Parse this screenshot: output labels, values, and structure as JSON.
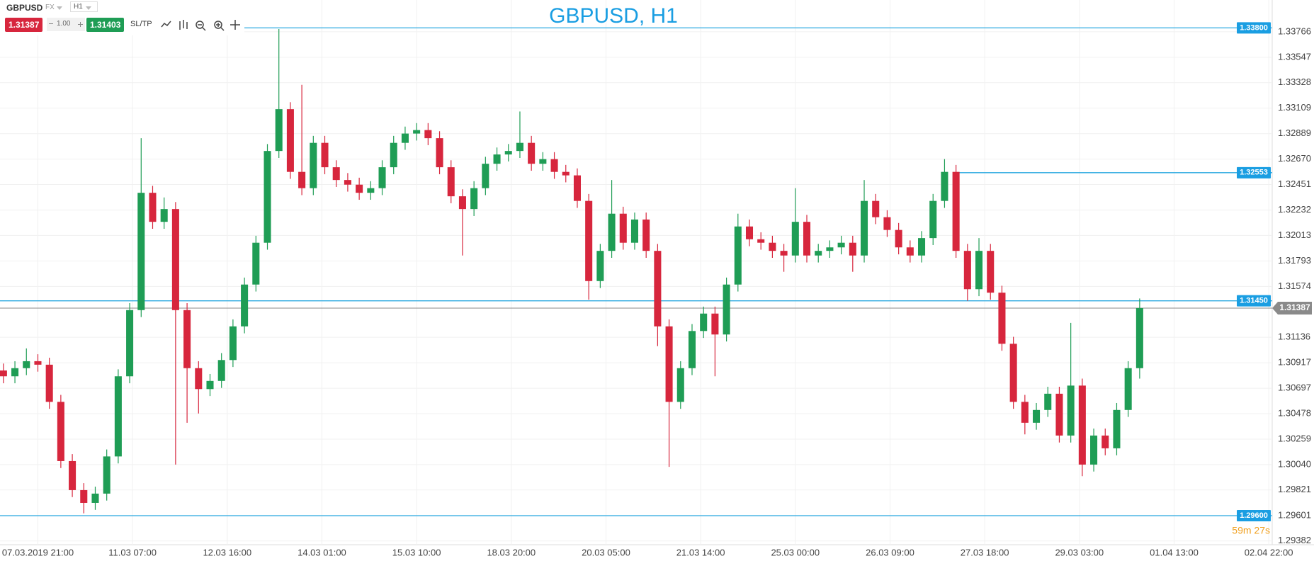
{
  "toolbar": {
    "symbol": "GBPUSD",
    "market": "FX",
    "timeframe": "H1",
    "sell": "1.31387",
    "lot": "1.00",
    "buy": "1.31403",
    "sltp": "SL/TP"
  },
  "chart_data": {
    "type": "candlestick",
    "title": "GBPUSD, H1",
    "up_color": "#1f9d55",
    "down_color": "#d7263d",
    "grid": true,
    "xlim": [
      -13.2,
      430.2
    ],
    "ylim": [
      1.2935,
      1.3404
    ],
    "xticks": [
      {
        "value": 0,
        "label": "07.03.2019 21:00"
      },
      {
        "value": 33,
        "label": "11.03 07:00"
      },
      {
        "value": 66,
        "label": "12.03 16:00"
      },
      {
        "value": 99,
        "label": "14.03 01:00"
      },
      {
        "value": 132,
        "label": "15.03 10:00"
      },
      {
        "value": 165,
        "label": "18.03 20:00"
      },
      {
        "value": 198,
        "label": "20.03 05:00"
      },
      {
        "value": 231,
        "label": "21.03 14:00"
      },
      {
        "value": 264,
        "label": "25.03 00:00"
      },
      {
        "value": 297,
        "label": "26.03 09:00"
      },
      {
        "value": 330,
        "label": "27.03 18:00"
      },
      {
        "value": 363,
        "label": "29.03 03:00"
      },
      {
        "value": 396,
        "label": "01.04 13:00"
      },
      {
        "value": 429,
        "label": "02.04 22:00"
      }
    ],
    "yticks": [
      1.33766,
      1.33547,
      1.33328,
      1.33109,
      1.32889,
      {
        "value": 1.3267,
        "label": "1.32670"
      },
      1.32451,
      1.32232,
      1.32013,
      1.31793,
      1.31574,
      1.31136,
      1.30917,
      1.30697,
      1.30478,
      1.30259,
      {
        "value": 1.3004,
        "label": "1.30040"
      },
      1.29821,
      1.29601,
      1.29382
    ],
    "levels": [
      {
        "value": 1.338,
        "label": "1.33800"
      },
      {
        "value": 1.32553,
        "label": "1.32553",
        "x_start": 320
      },
      {
        "value": 1.3145,
        "label": "1.31450"
      },
      {
        "value": 1.296,
        "label": "1.29600"
      }
    ],
    "current_price": {
      "value": 1.31387,
      "label": "1.31387"
    },
    "countdown": "59m 27s",
    "x": [
      -12,
      -8,
      -4,
      0,
      4,
      8,
      12,
      16,
      20,
      24,
      28,
      32,
      36,
      40,
      44,
      48,
      52,
      56,
      60,
      64,
      68,
      72,
      76,
      80,
      84,
      88,
      92,
      96,
      100,
      104,
      108,
      112,
      116,
      120,
      124,
      128,
      132,
      136,
      140,
      144,
      148,
      152,
      156,
      160,
      164,
      168,
      172,
      176,
      180,
      184,
      188,
      192,
      196,
      200,
      204,
      208,
      212,
      216,
      220,
      224,
      228,
      232,
      236,
      240,
      244,
      248,
      252,
      256,
      260,
      264,
      268,
      272,
      276,
      280,
      284,
      288,
      292,
      296,
      300,
      304,
      308,
      312,
      316,
      320,
      324,
      328,
      332,
      336,
      340,
      344,
      348,
      352,
      356,
      360,
      364,
      368,
      372,
      376,
      380,
      384
    ],
    "open": [
      1.3085,
      1.308,
      1.3087,
      1.3093,
      1.309,
      1.3058,
      1.3007,
      1.2982,
      1.2971,
      1.2979,
      1.3011,
      1.308,
      1.3137,
      1.3238,
      1.3213,
      1.3224,
      1.3137,
      1.3087,
      1.3069,
      1.3076,
      1.3094,
      1.3123,
      1.3159,
      1.3195,
      1.3274,
      1.331,
      1.3256,
      1.3242,
      1.3281,
      1.326,
      1.3249,
      1.3245,
      1.3238,
      1.3242,
      1.326,
      1.3281,
      1.3289,
      1.3292,
      1.3285,
      1.326,
      1.3235,
      1.3224,
      1.3242,
      1.3263,
      1.3271,
      1.3274,
      1.3281,
      1.3263,
      1.3267,
      1.3256,
      1.3253,
      1.3231,
      1.3162,
      1.3188,
      1.322,
      1.3195,
      1.3215,
      1.3188,
      1.3123,
      1.3058,
      1.3087,
      1.3119,
      1.3134,
      1.3116,
      1.3159,
      1.3209,
      1.3198,
      1.3195,
      1.3188,
      1.3184,
      1.3213,
      1.3184,
      1.3188,
      1.3191,
      1.3195,
      1.3184,
      1.3231,
      1.3217,
      1.3206,
      1.3191,
      1.3184,
      1.3199,
      1.3231,
      1.3256,
      1.3188,
      1.3155,
      1.3188,
      1.3152,
      1.3108,
      1.3058,
      1.304,
      1.3051,
      1.3065,
      1.3029,
      1.3072,
      1.3004,
      1.3029,
      1.3018,
      1.3051,
      1.3087
    ],
    "high": [
      1.3091,
      1.3093,
      1.3104,
      1.3099,
      1.3096,
      1.3064,
      1.3013,
      1.2988,
      1.2985,
      1.3017,
      1.3086,
      1.3143,
      1.3285,
      1.3244,
      1.3234,
      1.323,
      1.3143,
      1.3093,
      1.3082,
      1.31,
      1.3129,
      1.3165,
      1.3201,
      1.328,
      1.3379,
      1.3316,
      1.3331,
      1.3287,
      1.3287,
      1.3266,
      1.3255,
      1.3251,
      1.3248,
      1.3266,
      1.3287,
      1.3295,
      1.3298,
      1.3298,
      1.3291,
      1.3266,
      1.3241,
      1.3248,
      1.3269,
      1.3277,
      1.328,
      1.3308,
      1.3287,
      1.3273,
      1.3273,
      1.3262,
      1.3259,
      1.3237,
      1.3194,
      1.3249,
      1.3226,
      1.3221,
      1.3221,
      1.3194,
      1.3129,
      1.3093,
      1.3125,
      1.314,
      1.314,
      1.3165,
      1.322,
      1.3215,
      1.3204,
      1.3201,
      1.3194,
      1.3242,
      1.3219,
      1.3194,
      1.3197,
      1.3201,
      1.3201,
      1.3249,
      1.3237,
      1.3223,
      1.3212,
      1.3197,
      1.3205,
      1.3237,
      1.3267,
      1.3262,
      1.3194,
      1.3199,
      1.3194,
      1.3158,
      1.3114,
      1.3064,
      1.3057,
      1.3071,
      1.3071,
      1.3126,
      1.3078,
      1.3035,
      1.3035,
      1.3057,
      1.3093,
      1.3147
    ],
    "low": [
      1.3074,
      1.3074,
      1.3081,
      1.3084,
      1.3052,
      1.3001,
      1.2976,
      1.2962,
      1.2965,
      1.2973,
      1.3005,
      1.3074,
      1.3131,
      1.3207,
      1.3207,
      1.3004,
      1.304,
      1.3048,
      1.3063,
      1.307,
      1.3088,
      1.3117,
      1.3153,
      1.3189,
      1.3268,
      1.325,
      1.3236,
      1.3236,
      1.3254,
      1.3243,
      1.3239,
      1.3232,
      1.3232,
      1.3236,
      1.3254,
      1.3275,
      1.3283,
      1.3279,
      1.3254,
      1.3229,
      1.3184,
      1.3218,
      1.3236,
      1.3257,
      1.3265,
      1.3268,
      1.3257,
      1.3257,
      1.325,
      1.3247,
      1.3225,
      1.3146,
      1.3156,
      1.3182,
      1.3189,
      1.3189,
      1.3182,
      1.3106,
      1.3002,
      1.3052,
      1.3081,
      1.3113,
      1.308,
      1.311,
      1.3153,
      1.3192,
      1.3189,
      1.3182,
      1.317,
      1.3178,
      1.3178,
      1.3178,
      1.3182,
      1.3185,
      1.317,
      1.3178,
      1.3211,
      1.32,
      1.3185,
      1.3178,
      1.3178,
      1.3193,
      1.3225,
      1.3182,
      1.3145,
      1.3149,
      1.3146,
      1.3102,
      1.3052,
      1.303,
      1.3034,
      1.3045,
      1.3023,
      1.3023,
      1.2994,
      1.2998,
      1.3012,
      1.3012,
      1.3045,
      1.3078
    ],
    "close": [
      1.308,
      1.3087,
      1.3093,
      1.309,
      1.3058,
      1.3007,
      1.2982,
      1.2971,
      1.2979,
      1.3011,
      1.308,
      1.3137,
      1.3238,
      1.3213,
      1.3224,
      1.3137,
      1.3087,
      1.3069,
      1.3076,
      1.3094,
      1.3123,
      1.3159,
      1.3195,
      1.3274,
      1.331,
      1.3256,
      1.3242,
      1.3281,
      1.326,
      1.3249,
      1.3245,
      1.3238,
      1.3242,
      1.326,
      1.3281,
      1.3289,
      1.3292,
      1.3285,
      1.326,
      1.3235,
      1.3224,
      1.3242,
      1.3263,
      1.3271,
      1.3274,
      1.3281,
      1.3263,
      1.3267,
      1.3256,
      1.3253,
      1.3231,
      1.3162,
      1.3188,
      1.322,
      1.3195,
      1.3215,
      1.3188,
      1.3123,
      1.3058,
      1.3087,
      1.3119,
      1.3134,
      1.3116,
      1.3159,
      1.3209,
      1.3198,
      1.3195,
      1.3188,
      1.3184,
      1.3213,
      1.3184,
      1.3188,
      1.3191,
      1.3195,
      1.3184,
      1.3231,
      1.3217,
      1.3206,
      1.3191,
      1.3184,
      1.3199,
      1.3231,
      1.3256,
      1.3188,
      1.3155,
      1.3188,
      1.3152,
      1.3108,
      1.3058,
      1.304,
      1.3051,
      1.3065,
      1.3029,
      1.3072,
      1.3004,
      1.3029,
      1.3018,
      1.3051,
      1.3087,
      1.31387
    ]
  }
}
